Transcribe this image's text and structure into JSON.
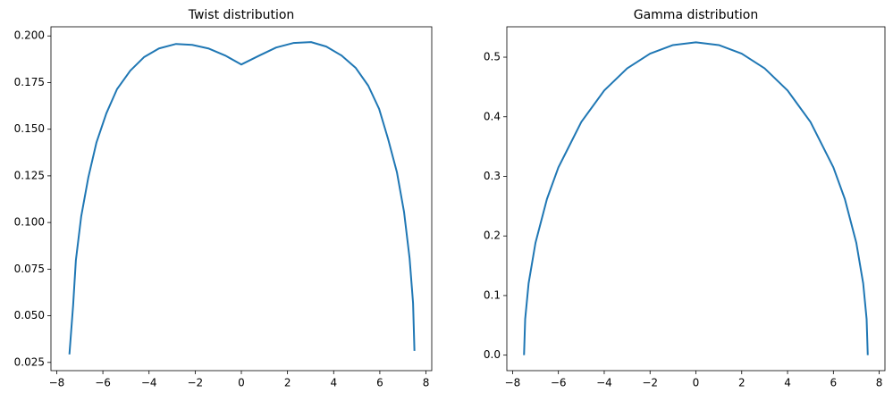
{
  "chart_data": [
    {
      "type": "line",
      "title": "Twist distribution",
      "x": [
        -7.45,
        -7.29,
        -7.17,
        -6.94,
        -6.63,
        -6.28,
        -5.85,
        -5.39,
        -4.81,
        -4.22,
        -3.57,
        -2.83,
        -2.13,
        -1.43,
        -0.7,
        0,
        0.78,
        1.51,
        2.25,
        3.02,
        3.68,
        4.34,
        4.96,
        5.5,
        5.97,
        6.36,
        6.74,
        7.05,
        7.29,
        7.44,
        7.5
      ],
      "series": [
        {
          "color": "#1f77b4",
          "values": [
            0.0293,
            0.0555,
            0.0798,
            0.1032,
            0.1242,
            0.1428,
            0.1585,
            0.1714,
            0.1814,
            0.1886,
            0.1933,
            0.1957,
            0.1952,
            0.1933,
            0.1895,
            0.1847,
            0.1895,
            0.1938,
            0.1962,
            0.1967,
            0.1943,
            0.1895,
            0.1828,
            0.1733,
            0.1609,
            0.1447,
            0.127,
            0.1056,
            0.0808,
            0.0569,
            0.0312
          ]
        }
      ],
      "xlim": [
        -8.25,
        8.25
      ],
      "xticks": [
        {
          "value": -8,
          "label": "−8"
        },
        {
          "value": -6,
          "label": "−6"
        },
        {
          "value": -4,
          "label": "−4"
        },
        {
          "value": -2,
          "label": "−2"
        },
        0,
        2,
        4,
        6,
        8
      ],
      "ylim": [
        0.0206,
        0.2049
      ],
      "yticks": [
        0.025,
        {
          "value": 0.05,
          "label": "0.050"
        },
        0.075,
        {
          "value": 0.1,
          "label": "0.100"
        },
        0.125,
        {
          "value": 0.15,
          "label": "0.150"
        },
        0.175,
        {
          "value": 0.2,
          "label": "0.200"
        }
      ],
      "grid": false
    },
    {
      "type": "line",
      "title": "Gamma distribution",
      "x": [
        -7.5,
        -7.45,
        -7.3,
        -7,
        -6.5,
        -6,
        -5,
        -4,
        -3,
        -2,
        -1,
        0,
        1,
        2,
        3,
        4,
        5,
        6,
        6.5,
        7,
        7.3,
        7.45,
        7.5
      ],
      "series": [
        {
          "color": "#1f77b4",
          "values": [
            0,
            0.0606,
            0.1204,
            0.1885,
            0.2619,
            0.315,
            0.3913,
            0.4441,
            0.4812,
            0.506,
            0.5203,
            0.525,
            0.5203,
            0.506,
            0.4812,
            0.4441,
            0.3913,
            0.315,
            0.2619,
            0.1885,
            0.1204,
            0.0606,
            0
          ]
        }
      ],
      "xlim": [
        -8.25,
        8.25
      ],
      "xticks": [
        {
          "value": -8,
          "label": "−8"
        },
        {
          "value": -6,
          "label": "−6"
        },
        {
          "value": -4,
          "label": "−4"
        },
        {
          "value": -2,
          "label": "−2"
        },
        0,
        2,
        4,
        6,
        8
      ],
      "ylim": [
        -0.026,
        0.551
      ],
      "yticks": [
        {
          "value": 0,
          "label": "0.0"
        },
        0.1,
        0.2,
        0.3,
        0.4,
        0.5
      ],
      "grid": false
    }
  ]
}
